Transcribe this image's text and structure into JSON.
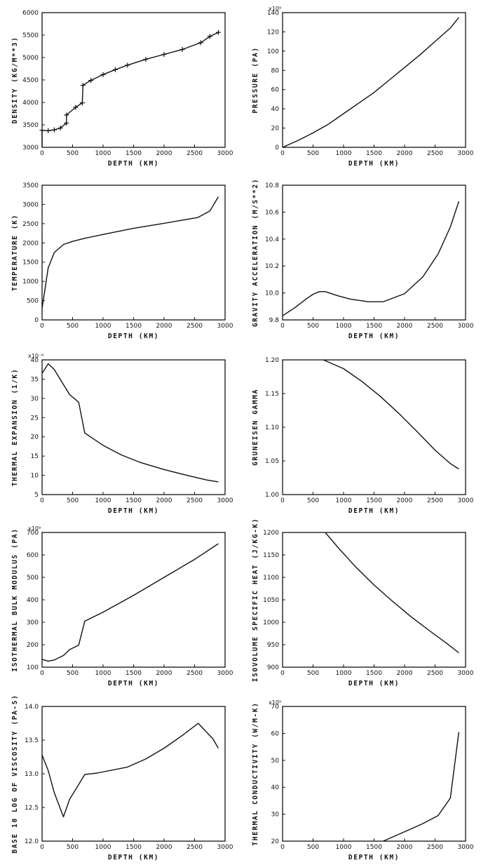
{
  "chart_data": [
    {
      "type": "line",
      "xlabel": "DEPTH (KM)",
      "ylabel": "DENSITY (KG/M**3)",
      "multiplier": "",
      "xlim": [
        0,
        3000
      ],
      "ylim": [
        3000,
        6000
      ],
      "xticks": [
        "0",
        "500",
        "1000",
        "1500",
        "2000",
        "2500",
        "3000"
      ],
      "yticks": [
        "3000",
        "3500",
        "4000",
        "4500",
        "5000",
        "5500",
        "6000"
      ],
      "markers": true,
      "points": [
        [
          0,
          3000
        ],
        [
          0,
          3380
        ],
        [
          100,
          3370
        ],
        [
          200,
          3390
        ],
        [
          300,
          3430
        ],
        [
          400,
          3540
        ],
        [
          400,
          3720
        ],
        [
          550,
          3890
        ],
        [
          660,
          3990
        ],
        [
          670,
          4380
        ],
        [
          800,
          4490
        ],
        [
          1000,
          4620
        ],
        [
          1200,
          4730
        ],
        [
          1400,
          4830
        ],
        [
          1700,
          4960
        ],
        [
          2000,
          5070
        ],
        [
          2300,
          5180
        ],
        [
          2600,
          5330
        ],
        [
          2750,
          5470
        ],
        [
          2890,
          5560
        ]
      ]
    },
    {
      "type": "line",
      "xlabel": "DEPTH (KM)",
      "ylabel": "PRESSURE (PA)",
      "multiplier": "x10⁹",
      "xlim": [
        0,
        3000
      ],
      "ylim": [
        0,
        140
      ],
      "xticks": [
        "0",
        "500",
        "1000",
        "1500",
        "2000",
        "2500",
        "3000"
      ],
      "yticks": [
        "0",
        "20",
        "40",
        "60",
        "80",
        "100",
        "120",
        "140"
      ],
      "markers": false,
      "points": [
        [
          0,
          0
        ],
        [
          250,
          7
        ],
        [
          500,
          15
        ],
        [
          750,
          24
        ],
        [
          1000,
          35
        ],
        [
          1250,
          46
        ],
        [
          1500,
          57
        ],
        [
          1750,
          70
        ],
        [
          2000,
          83
        ],
        [
          2250,
          96
        ],
        [
          2500,
          110
        ],
        [
          2750,
          124
        ],
        [
          2890,
          135
        ]
      ]
    },
    {
      "type": "line",
      "xlabel": "DEPTH (KM)",
      "ylabel": "TEMPERATURE (K)",
      "multiplier": "",
      "xlim": [
        0,
        3000
      ],
      "ylim": [
        0,
        3500
      ],
      "xticks": [
        "0",
        "500",
        "1000",
        "1500",
        "2000",
        "2500",
        "3000"
      ],
      "yticks": [
        "0",
        "500",
        "1000",
        "1500",
        "2000",
        "2500",
        "3000",
        "3500"
      ],
      "markers": false,
      "points": [
        [
          0,
          300
        ],
        [
          20,
          500
        ],
        [
          100,
          1350
        ],
        [
          200,
          1750
        ],
        [
          350,
          1960
        ],
        [
          500,
          2040
        ],
        [
          700,
          2120
        ],
        [
          1000,
          2220
        ],
        [
          1500,
          2380
        ],
        [
          2000,
          2510
        ],
        [
          2550,
          2660
        ],
        [
          2750,
          2830
        ],
        [
          2890,
          3200
        ]
      ]
    },
    {
      "type": "line",
      "xlabel": "DEPTH (KM)",
      "ylabel": "GRAVITY ACCELERATION (M/S**2)",
      "multiplier": "",
      "xlim": [
        0,
        3000
      ],
      "ylim": [
        9.8,
        10.8
      ],
      "xticks": [
        "0",
        "500",
        "1000",
        "1500",
        "2000",
        "2500",
        "3000"
      ],
      "yticks": [
        "9.8",
        "10.0",
        "10.2",
        "10.4",
        "10.6",
        "10.8"
      ],
      "markers": false,
      "points": [
        [
          0,
          9.83
        ],
        [
          200,
          9.89
        ],
        [
          400,
          9.96
        ],
        [
          500,
          9.99
        ],
        [
          600,
          10.01
        ],
        [
          700,
          10.01
        ],
        [
          900,
          9.98
        ],
        [
          1100,
          9.955
        ],
        [
          1400,
          9.935
        ],
        [
          1650,
          9.935
        ],
        [
          2000,
          9.995
        ],
        [
          2300,
          10.12
        ],
        [
          2550,
          10.29
        ],
        [
          2750,
          10.49
        ],
        [
          2890,
          10.68
        ]
      ]
    },
    {
      "type": "line",
      "xlabel": "DEPTH (KM)",
      "ylabel": "THERMAL EXPANSION (1/K)",
      "multiplier": "x10⁻⁶",
      "xlim": [
        0,
        3000
      ],
      "ylim": [
        5,
        40
      ],
      "xticks": [
        "0",
        "500",
        "1000",
        "1500",
        "2000",
        "2500",
        "3000"
      ],
      "yticks": [
        "5",
        "10",
        "15",
        "20",
        "25",
        "30",
        "35",
        "40"
      ],
      "markers": false,
      "points": [
        [
          0,
          36.5
        ],
        [
          100,
          39
        ],
        [
          200,
          37.5
        ],
        [
          450,
          31
        ],
        [
          600,
          29
        ],
        [
          700,
          21
        ],
        [
          1000,
          17.8
        ],
        [
          1300,
          15.3
        ],
        [
          1600,
          13.4
        ],
        [
          2000,
          11.5
        ],
        [
          2400,
          9.9
        ],
        [
          2700,
          8.8
        ],
        [
          2890,
          8.3
        ]
      ]
    },
    {
      "type": "line",
      "xlabel": "DEPTH (KM)",
      "ylabel": "GRUNEISEN GAMMA",
      "multiplier": "",
      "xlim": [
        0,
        3000
      ],
      "ylim": [
        1.0,
        1.2
      ],
      "xticks": [
        "0",
        "500",
        "1000",
        "1500",
        "2000",
        "2500",
        "3000"
      ],
      "yticks": [
        "1.00",
        "1.05",
        "1.10",
        "1.15",
        "1.20"
      ],
      "markers": false,
      "points": [
        [
          670,
          1.2
        ],
        [
          1000,
          1.187
        ],
        [
          1300,
          1.168
        ],
        [
          1600,
          1.146
        ],
        [
          1900,
          1.121
        ],
        [
          2200,
          1.094
        ],
        [
          2500,
          1.066
        ],
        [
          2750,
          1.046
        ],
        [
          2890,
          1.038
        ]
      ]
    },
    {
      "type": "line",
      "xlabel": "DEPTH (KM)",
      "ylabel": "ISOTHERMAL BULK MODULUS (PA)",
      "multiplier": "x10⁹",
      "xlim": [
        0,
        3000
      ],
      "ylim": [
        100,
        700
      ],
      "xticks": [
        "0",
        "500",
        "1000",
        "1500",
        "2000",
        "2500",
        "3000"
      ],
      "yticks": [
        "100",
        "200",
        "300",
        "400",
        "500",
        "600",
        "700"
      ],
      "markers": false,
      "points": [
        [
          0,
          135
        ],
        [
          100,
          127
        ],
        [
          200,
          132
        ],
        [
          350,
          152
        ],
        [
          450,
          178
        ],
        [
          600,
          198
        ],
        [
          700,
          305
        ],
        [
          1000,
          345
        ],
        [
          1500,
          420
        ],
        [
          2000,
          500
        ],
        [
          2500,
          580
        ],
        [
          2890,
          650
        ]
      ]
    },
    {
      "type": "line",
      "xlabel": "DEPTH (KM)",
      "ylabel": "ISOVOLUME SPECIFIC HEAT (J/KG-K)",
      "multiplier": "",
      "xlim": [
        0,
        3000
      ],
      "ylim": [
        900,
        1200
      ],
      "xticks": [
        "0",
        "500",
        "1000",
        "1500",
        "2000",
        "2500",
        "3000"
      ],
      "yticks": [
        "900",
        "950",
        "1000",
        "1050",
        "1100",
        "1150",
        "1200"
      ],
      "markers": false,
      "points": [
        [
          700,
          1200
        ],
        [
          900,
          1168
        ],
        [
          1200,
          1123
        ],
        [
          1500,
          1083
        ],
        [
          1800,
          1047
        ],
        [
          2100,
          1013
        ],
        [
          2400,
          982
        ],
        [
          2700,
          952
        ],
        [
          2890,
          932
        ]
      ]
    },
    {
      "type": "line",
      "xlabel": "DEPTH (KM)",
      "ylabel": "BASE 10 LOG OF VISCOSITY (PA-S)",
      "multiplier": "",
      "xlim": [
        0,
        3000
      ],
      "ylim": [
        12.0,
        14.0
      ],
      "xticks": [
        "0",
        "500",
        "1000",
        "1500",
        "2000",
        "2500",
        "3000"
      ],
      "yticks": [
        "12.0",
        "12.5",
        "13.0",
        "13.5",
        "14.0"
      ],
      "markers": false,
      "points": [
        [
          0,
          13.28
        ],
        [
          100,
          13.05
        ],
        [
          200,
          12.72
        ],
        [
          350,
          12.36
        ],
        [
          450,
          12.62
        ],
        [
          700,
          12.99
        ],
        [
          900,
          13.01
        ],
        [
          1400,
          13.1
        ],
        [
          1700,
          13.22
        ],
        [
          2000,
          13.38
        ],
        [
          2300,
          13.57
        ],
        [
          2560,
          13.75
        ],
        [
          2800,
          13.52
        ],
        [
          2890,
          13.38
        ]
      ]
    },
    {
      "type": "line",
      "xlabel": "DEPTH (KM)",
      "ylabel": "THERMAL CONDUCTIVITY (W/M-K)",
      "multiplier": "x10⁹",
      "xlim": [
        0,
        3000
      ],
      "ylim": [
        20,
        70
      ],
      "xticks": [
        "0",
        "500",
        "1000",
        "1500",
        "2000",
        "2500",
        "3000"
      ],
      "yticks": [
        "20",
        "30",
        "40",
        "50",
        "60",
        "70"
      ],
      "markers": false,
      "points": [
        [
          1650,
          20
        ],
        [
          2000,
          23.5
        ],
        [
          2300,
          26.5
        ],
        [
          2550,
          29.5
        ],
        [
          2750,
          36
        ],
        [
          2890,
          60.5
        ]
      ]
    }
  ]
}
